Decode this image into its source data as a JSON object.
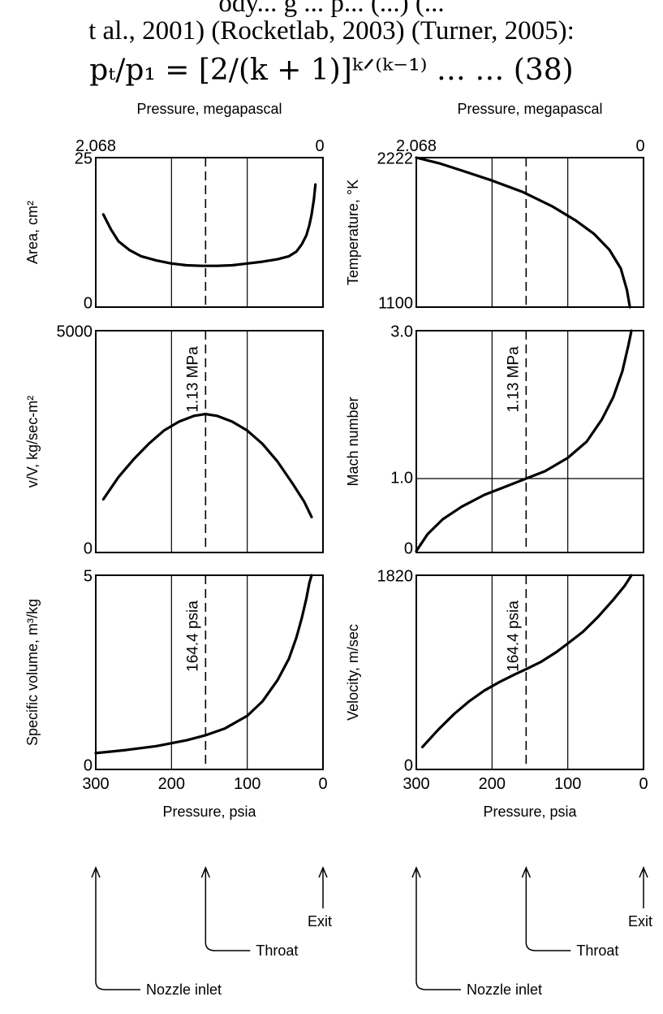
{
  "header": {
    "line1": "ody... g ... p... (...) (...",
    "line2": "t al., 2001) (Rocketlab, 2003) (Turner, 2005):",
    "equation": "pₜ/p₁ = [2/(k + 1)]ᵏᐟ⁽ᵏ⁻¹⁾ … … (38)"
  },
  "figure": {
    "columns": [
      {
        "top_axis_title": "Pressure, megapascal",
        "top_ticks": [
          "2.068",
          "0"
        ],
        "bottom_axis_title": "Pressure, psia",
        "bottom_ticks": [
          "300",
          "200",
          "100",
          "0"
        ]
      },
      {
        "top_axis_title": "Pressure, megapascal",
        "top_ticks": [
          "2.068",
          "0"
        ],
        "bottom_axis_title": "Pressure, psia",
        "bottom_ticks": [
          "300",
          "200",
          "100",
          "0"
        ]
      }
    ],
    "arrows": {
      "nozzle_inlet": "Nozzle inlet",
      "throat": "Throat",
      "exit": "Exit"
    }
  },
  "chart_data": [
    {
      "type": "line",
      "panel": "area",
      "ylabel": "Area, cm²",
      "ylim": [
        0,
        25
      ],
      "yticks": [
        "25",
        "0"
      ],
      "xlim": [
        300,
        0
      ],
      "vlines": [
        200,
        155,
        100
      ],
      "dashed_line_at": 155,
      "x": [
        290,
        280,
        270,
        255,
        240,
        220,
        200,
        180,
        160,
        140,
        120,
        100,
        80,
        60,
        45,
        35,
        28,
        22,
        18,
        15,
        12,
        10
      ],
      "y": [
        15.5,
        13.0,
        11.0,
        9.5,
        8.5,
        7.8,
        7.3,
        7.0,
        6.9,
        6.9,
        7.0,
        7.3,
        7.6,
        8.0,
        8.5,
        9.3,
        10.5,
        12.0,
        13.7,
        15.5,
        18.0,
        20.5
      ]
    },
    {
      "type": "line",
      "panel": "temperature",
      "ylabel": "Temperature, °K",
      "ylim": [
        1100,
        2222
      ],
      "yticks": [
        "2222",
        "1100"
      ],
      "xlim": [
        300,
        0
      ],
      "vlines": [
        200,
        155,
        100
      ],
      "dashed_line_at": 155,
      "x": [
        300,
        270,
        240,
        200,
        160,
        120,
        90,
        65,
        45,
        30,
        22,
        18
      ],
      "y": [
        2222,
        2180,
        2125,
        2050,
        1965,
        1855,
        1752,
        1648,
        1530,
        1390,
        1230,
        1100
      ]
    },
    {
      "type": "line",
      "panel": "mass-flux",
      "ylabel": "v/V, kg/sec-m²",
      "ylim": [
        0,
        5000
      ],
      "yticks": [
        "5000",
        "0"
      ],
      "xlim": [
        300,
        0
      ],
      "vlines": [
        200,
        155,
        100
      ],
      "dashed_line_at": 155,
      "annotation": "1.13 MPa",
      "x": [
        290,
        270,
        250,
        230,
        210,
        190,
        170,
        155,
        140,
        120,
        100,
        80,
        60,
        40,
        25,
        15
      ],
      "y": [
        1200,
        1700,
        2100,
        2450,
        2750,
        2950,
        3080,
        3120,
        3080,
        2950,
        2750,
        2450,
        2050,
        1550,
        1150,
        800
      ]
    },
    {
      "type": "line",
      "panel": "mach",
      "ylabel": "Mach number",
      "ylim": [
        0,
        3.0
      ],
      "yticks": [
        "3.0",
        "1.0",
        "0"
      ],
      "hline": 1.0,
      "xlim": [
        300,
        0
      ],
      "vlines": [
        200,
        155,
        100
      ],
      "dashed_line_at": 155,
      "annotation": "1.13 MPa",
      "x": [
        300,
        285,
        265,
        240,
        210,
        180,
        155,
        130,
        100,
        75,
        55,
        40,
        28,
        20,
        16
      ],
      "y": [
        0.02,
        0.25,
        0.45,
        0.62,
        0.78,
        0.9,
        1.0,
        1.1,
        1.28,
        1.5,
        1.8,
        2.1,
        2.45,
        2.8,
        3.0
      ]
    },
    {
      "type": "line",
      "panel": "specific-volume",
      "ylabel": "Specific volume, m³/kg",
      "ylim": [
        0,
        5
      ],
      "yticks": [
        "5",
        "0"
      ],
      "xlim": [
        300,
        0
      ],
      "vlines": [
        200,
        155,
        100
      ],
      "dashed_line_at": 155,
      "annotation": "164.4 psia",
      "x": [
        300,
        260,
        220,
        180,
        155,
        130,
        100,
        80,
        60,
        45,
        35,
        28,
        22,
        18,
        15
      ],
      "y": [
        0.42,
        0.5,
        0.6,
        0.75,
        0.88,
        1.05,
        1.38,
        1.75,
        2.3,
        2.85,
        3.4,
        3.9,
        4.4,
        4.8,
        5.0
      ]
    },
    {
      "type": "line",
      "panel": "velocity",
      "ylabel": "Velocity, m/sec",
      "ylim": [
        0,
        1820
      ],
      "yticks": [
        "1820",
        "0"
      ],
      "xlim": [
        300,
        0
      ],
      "vlines": [
        200,
        155,
        100
      ],
      "dashed_line_at": 155,
      "annotation": "164.4 psia",
      "x": [
        292,
        270,
        250,
        230,
        210,
        190,
        170,
        155,
        135,
        115,
        100,
        80,
        60,
        40,
        25,
        16
      ],
      "y": [
        210,
        380,
        520,
        640,
        740,
        820,
        890,
        940,
        1010,
        1100,
        1180,
        1290,
        1430,
        1590,
        1720,
        1820
      ]
    }
  ]
}
